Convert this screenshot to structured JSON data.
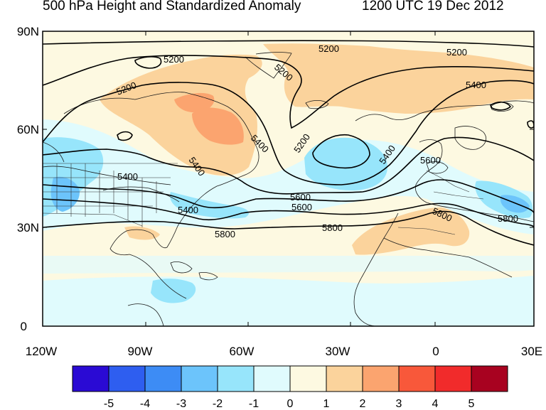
{
  "title_left": "500 hPa Height and Standardized Anomaly",
  "title_right": "1200 UTC 19 Dec 2012",
  "lat_labels": [
    "90N",
    "60N",
    "30N",
    "0"
  ],
  "lon_labels": [
    "120W",
    "90W",
    "60W",
    "30W",
    "0",
    "30E"
  ],
  "contour_labels": [
    "5200",
    "5200",
    "5200",
    "5200",
    "5200",
    "5200",
    "5400",
    "5400",
    "5400",
    "5400",
    "5400",
    "5400",
    "5600",
    "5600",
    "5600",
    "5800",
    "5800",
    "5800",
    "5800"
  ],
  "colorbar": {
    "colors": [
      "#2a0ad4",
      "#2e5ef0",
      "#3d8cf5",
      "#6cc4fb",
      "#97e5fb",
      "#e0fbfd",
      "#fdf9e1",
      "#fbd39c",
      "#fba46f",
      "#f8583a",
      "#f12b2b",
      "#a80220"
    ],
    "tick_labels": [
      "-5",
      "-4",
      "-3",
      "-2",
      "-1",
      "0",
      "1",
      "2",
      "3",
      "4",
      "5"
    ]
  },
  "colors": {
    "pos_light": "#fdf9e1",
    "pos_mid": "#fbd39c",
    "pos_strong": "#fba46f",
    "neg_light": "#e0fbfd",
    "neg_mid": "#97e5fb",
    "neg_strong": "#6cc4fb"
  }
}
